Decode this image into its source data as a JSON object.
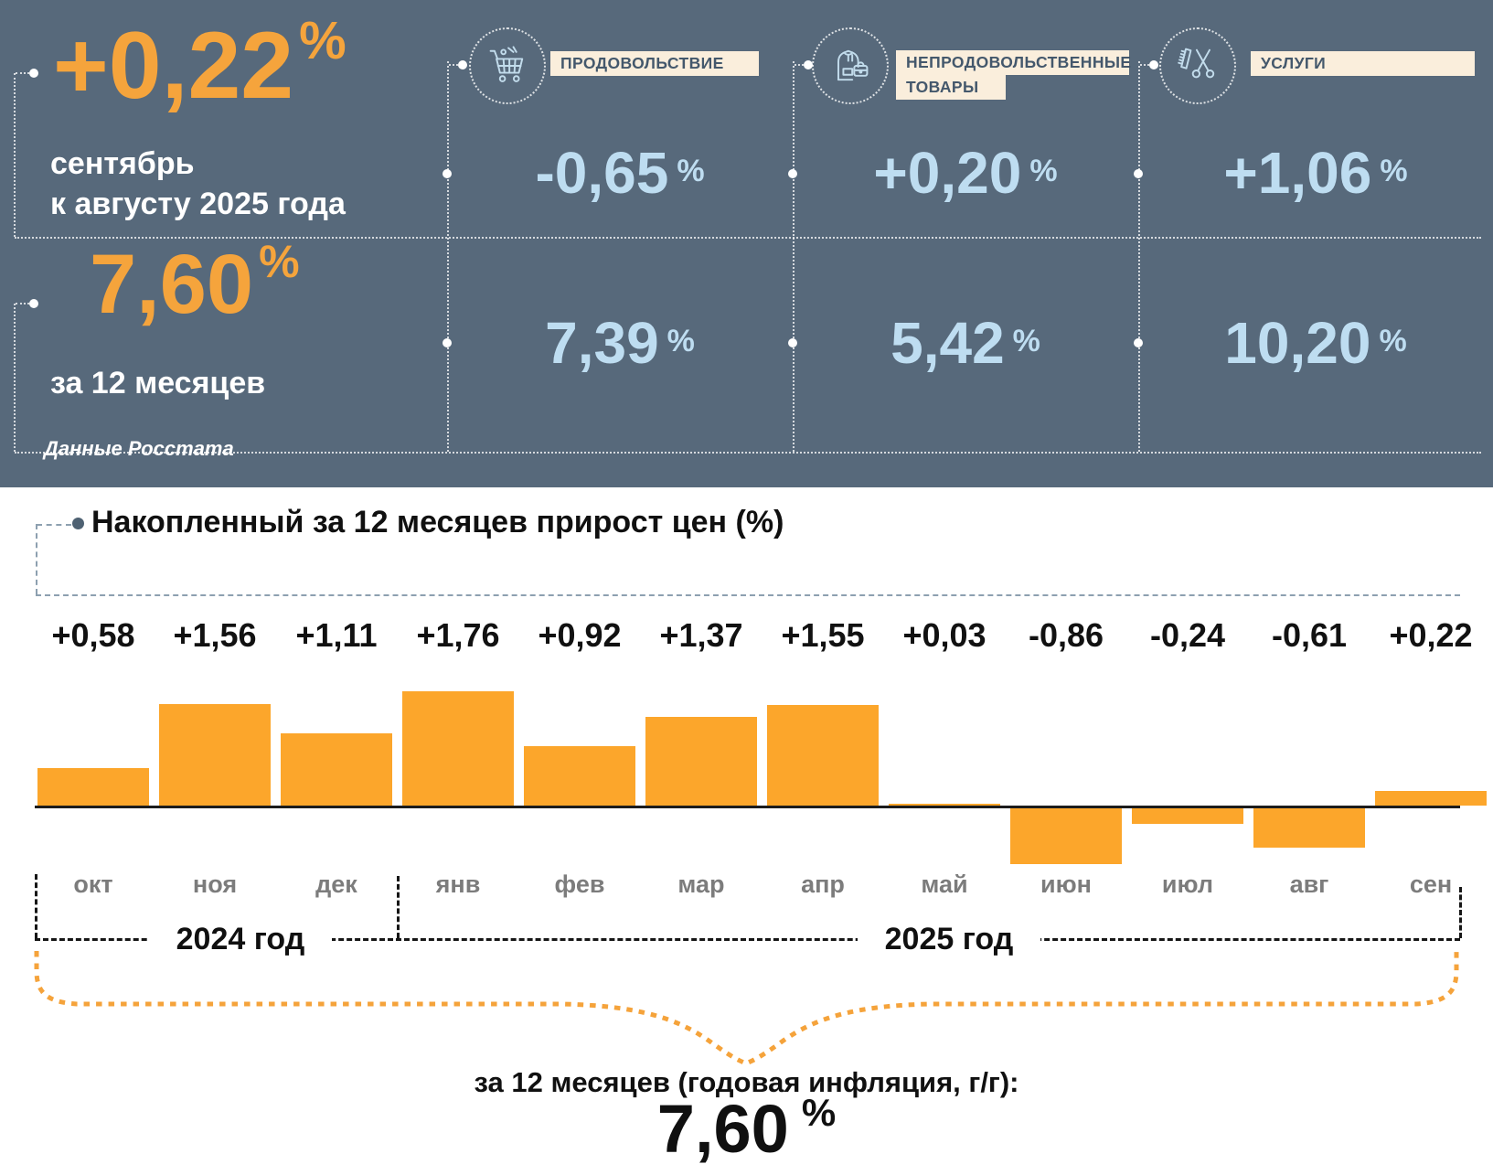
{
  "header": {
    "monthly": {
      "value": "+0,22",
      "unit": "%",
      "caption1": "сентябрь",
      "caption2": "к августу 2025 года"
    },
    "annual": {
      "value": "7,60",
      "unit": "%",
      "caption": "за 12 месяцев"
    },
    "source": "Данные Росстата",
    "categories": [
      {
        "name": "food",
        "label1": "ПРОДОВОЛЬСТВИЕ",
        "label2": "",
        "monthly": "-0,65",
        "annual": "7,39",
        "unit": "%",
        "icon": "cart-icon"
      },
      {
        "name": "nonfood",
        "label1": "НЕПРОДОВОЛЬСТВЕННЫЕ",
        "label2": "ТОВАРЫ",
        "monthly": "+0,20",
        "annual": "5,42",
        "unit": "%",
        "icon": "clothing-bag-icon"
      },
      {
        "name": "services",
        "label1": "УСЛУГИ",
        "label2": "",
        "monthly": "+1,06",
        "annual": "10,20",
        "unit": "%",
        "icon": "scissors-comb-icon"
      }
    ]
  },
  "chart": {
    "title": "Накопленный за 12 месяцев прирост цен (%)",
    "years": [
      {
        "label": "2024 год"
      },
      {
        "label": "2025 год"
      }
    ],
    "footer_label": "за 12 месяцев (годовая инфляция, г/г):",
    "footer_value": "7,60",
    "footer_unit": "%"
  },
  "chart_data": {
    "type": "bar",
    "title": "Накопленный за 12 месяцев прирост цен (%)",
    "categories": [
      "окт",
      "ноя",
      "дек",
      "янв",
      "фев",
      "мар",
      "апр",
      "май",
      "июн",
      "июл",
      "авг",
      "сен"
    ],
    "values": [
      0.58,
      1.56,
      1.11,
      1.76,
      0.92,
      1.37,
      1.55,
      0.03,
      -0.86,
      -0.24,
      -0.61,
      0.22
    ],
    "value_labels": [
      "+0,58",
      "+1,56",
      "+1,11",
      "+1,76",
      "+0,92",
      "+1,37",
      "+1,55",
      "+0,03",
      "-0,86",
      "-0,24",
      "-0,61",
      "+0,22"
    ],
    "year_groups": [
      {
        "label": "2024 год",
        "months": [
          "окт",
          "ноя",
          "дек"
        ]
      },
      {
        "label": "2025 год",
        "months": [
          "янв",
          "фев",
          "мар",
          "апр",
          "май",
          "июн",
          "июл",
          "авг",
          "сен"
        ]
      }
    ],
    "bar_color": "#FCA62B",
    "grid": false,
    "baseline": 0,
    "annotation": {
      "label": "за 12 месяцев (годовая инфляция, г/г):",
      "value": "7,60",
      "unit": "%"
    }
  },
  "colors": {
    "header_bg": "#57697B",
    "accent_orange": "#F5A43C",
    "value_blue": "#BEDDF1",
    "label_cream": "#FAEEDC"
  }
}
